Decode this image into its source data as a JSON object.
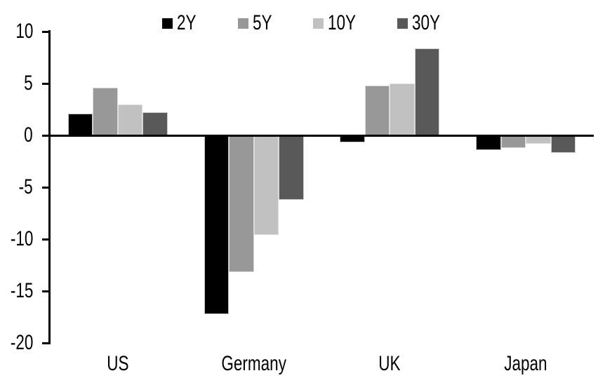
{
  "chart_data": {
    "type": "bar",
    "title": "",
    "categories": [
      "US",
      "Germany",
      "UK",
      "Japan"
    ],
    "series": [
      {
        "name": "2Y",
        "color": "#000000",
        "values": [
          2.1,
          -17.2,
          -0.7,
          -1.4
        ]
      },
      {
        "name": "5Y",
        "color": "#989898",
        "values": [
          4.6,
          -13.2,
          4.8,
          -1.2
        ]
      },
      {
        "name": "10Y",
        "color": "#c1c1c1",
        "values": [
          3.0,
          -9.6,
          5.0,
          -0.8
        ]
      },
      {
        "name": "30Y",
        "color": "#595959",
        "values": [
          2.2,
          -6.2,
          8.4,
          -1.7
        ]
      }
    ],
    "ylim": [
      -20,
      10
    ],
    "yticks": [
      10,
      5,
      0,
      -5,
      -10,
      -15,
      -20
    ],
    "xlabel": "",
    "ylabel": "",
    "grid": false,
    "legend_position": "top-center",
    "axis_color": "#000000",
    "plot_background": "#ffffff"
  }
}
